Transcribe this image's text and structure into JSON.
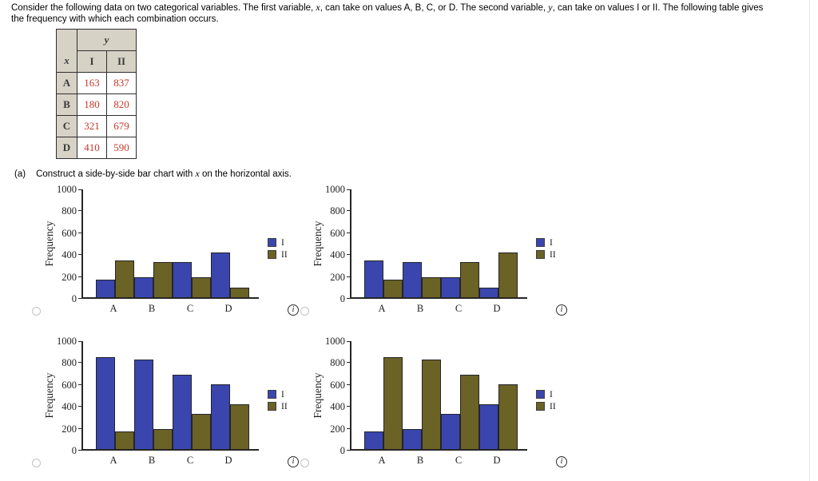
{
  "intro": {
    "part1": "Consider the following data on two categorical variables. The first variable, ",
    "var_x": "x",
    "part2": ", can take on values A, B, C, or D. The second variable, ",
    "var_y": "y",
    "part3": ", can take on values I or II. The following table gives the frequency with which each combination occurs."
  },
  "question": {
    "label": "(a)",
    "pre": "Construct a side-by-side bar chart with ",
    "var": "x",
    "post": " on the horizontal axis."
  },
  "table": {
    "col_group_header": "y",
    "row_header": "x",
    "col_headers": [
      "I",
      "II"
    ],
    "rows": [
      {
        "x": "A",
        "values": [
          163,
          837
        ]
      },
      {
        "x": "B",
        "values": [
          180,
          820
        ]
      },
      {
        "x": "C",
        "values": [
          321,
          679
        ]
      },
      {
        "x": "D",
        "values": [
          410,
          590
        ]
      }
    ],
    "value_color": "#c5392b",
    "header_bg": "#d6d2c6"
  },
  "chart_data": [
    {
      "id": "option-1",
      "type": "bar",
      "categories": [
        "A",
        "B",
        "C",
        "D"
      ],
      "series": [
        {
          "name": "I",
          "color": "#3a46ad",
          "values": [
            163,
            180,
            321,
            410
          ]
        },
        {
          "name": "II",
          "color": "#6b6226",
          "values": [
            337,
            320,
            179,
            90
          ]
        }
      ],
      "ylabel": "Frequency",
      "xlabel": "",
      "ylim": [
        0,
        1000
      ],
      "yticks": [
        0,
        200,
        400,
        600,
        800,
        1000
      ],
      "grid": false,
      "legend_position": "right"
    },
    {
      "id": "option-2",
      "type": "bar",
      "categories": [
        "A",
        "B",
        "C",
        "D"
      ],
      "series": [
        {
          "name": "I",
          "color": "#3a46ad",
          "values": [
            337,
            320,
            179,
            90
          ]
        },
        {
          "name": "II",
          "color": "#6b6226",
          "values": [
            163,
            180,
            321,
            410
          ]
        }
      ],
      "ylabel": "Frequency",
      "xlabel": "",
      "ylim": [
        0,
        1000
      ],
      "yticks": [
        0,
        200,
        400,
        600,
        800,
        1000
      ],
      "grid": false,
      "legend_position": "right"
    },
    {
      "id": "option-3",
      "type": "bar",
      "categories": [
        "A",
        "B",
        "C",
        "D"
      ],
      "series": [
        {
          "name": "I",
          "color": "#3a46ad",
          "values": [
            837,
            820,
            679,
            590
          ]
        },
        {
          "name": "II",
          "color": "#6b6226",
          "values": [
            163,
            180,
            321,
            410
          ]
        }
      ],
      "ylabel": "Frequency",
      "xlabel": "",
      "ylim": [
        0,
        1000
      ],
      "yticks": [
        0,
        200,
        400,
        600,
        800,
        1000
      ],
      "grid": false,
      "legend_position": "right"
    },
    {
      "id": "option-4",
      "type": "bar",
      "categories": [
        "A",
        "B",
        "C",
        "D"
      ],
      "series": [
        {
          "name": "I",
          "color": "#3a46ad",
          "values": [
            163,
            180,
            321,
            410
          ]
        },
        {
          "name": "II",
          "color": "#6b6226",
          "values": [
            837,
            820,
            679,
            590
          ]
        }
      ],
      "ylabel": "Frequency",
      "xlabel": "",
      "ylim": [
        0,
        1000
      ],
      "yticks": [
        0,
        200,
        400,
        600,
        800,
        1000
      ],
      "grid": false,
      "legend_position": "right"
    }
  ],
  "controls": {
    "info_symbol": "i",
    "radios_checked": [
      false,
      false,
      false,
      false
    ]
  }
}
